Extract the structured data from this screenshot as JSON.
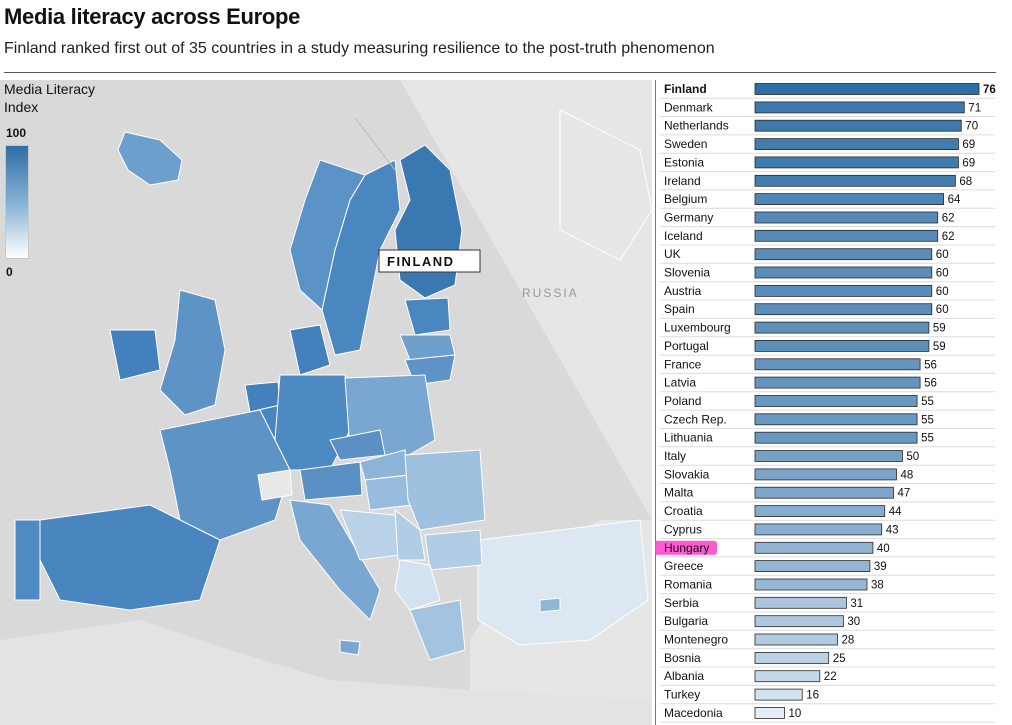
{
  "header": {
    "title": "Media literacy across Europe",
    "subtitle": "Finland ranked first out of 35 countries in a study measuring resilience to the post-truth phenomenon"
  },
  "legend": {
    "title": "Media Literacy Index",
    "max_label": "100",
    "min_label": "0"
  },
  "map": {
    "callout": "FINLAND",
    "russia_label": "RUSSIA"
  },
  "colors": {
    "bar_dark": "#2e6ea6",
    "bar_light": "#e4eef7",
    "grid": "#dcdcdc",
    "highlight": "#ff3dc8"
  },
  "chart_data": {
    "type": "bar",
    "orientation": "horizontal",
    "highlighted_categories": [
      "Finland"
    ],
    "marked_category": "Hungary",
    "categories": [
      "Finland",
      "Denmark",
      "Netherlands",
      "Sweden",
      "Estonia",
      "Ireland",
      "Belgium",
      "Germany",
      "Iceland",
      "UK",
      "Slovenia",
      "Austria",
      "Spain",
      "Luxembourg",
      "Portugal",
      "France",
      "Latvia",
      "Poland",
      "Czech Rep.",
      "Lithuania",
      "Italy",
      "Slovakia",
      "Malta",
      "Croatia",
      "Cyprus",
      "Hungary",
      "Greece",
      "Romania",
      "Serbia",
      "Bulgaria",
      "Montenegro",
      "Bosnia",
      "Albania",
      "Turkey",
      "Macedonia"
    ],
    "values": [
      76,
      71,
      70,
      69,
      69,
      68,
      64,
      62,
      62,
      60,
      60,
      60,
      60,
      59,
      59,
      56,
      56,
      55,
      55,
      55,
      50,
      48,
      47,
      44,
      43,
      40,
      39,
      38,
      31,
      30,
      28,
      25,
      22,
      16,
      10
    ],
    "xlim": [
      0,
      76
    ]
  }
}
